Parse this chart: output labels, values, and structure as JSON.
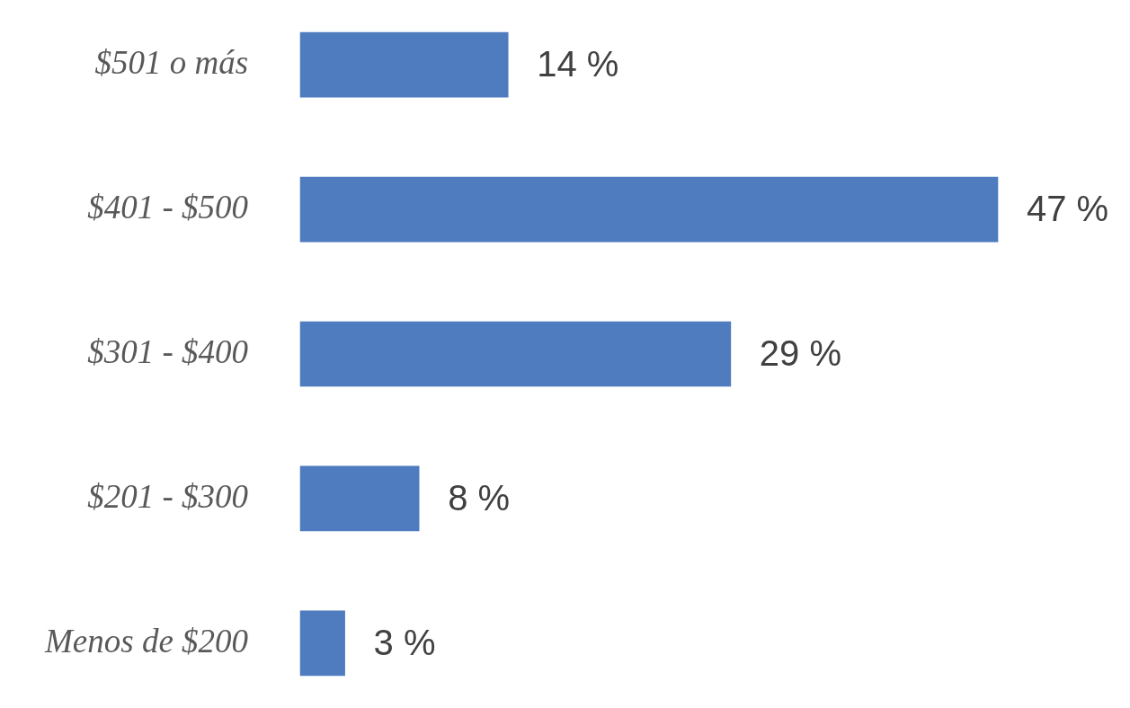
{
  "chart_data": {
    "type": "bar",
    "orientation": "horizontal",
    "categories": [
      "$501 o más",
      "$401 - $500",
      "$301 - $400",
      "$201 - $300",
      "Menos de $200"
    ],
    "values": [
      14,
      47,
      29,
      8,
      3
    ],
    "value_labels": [
      "14 %",
      "47 %",
      "29 %",
      "8 %",
      "3 %"
    ],
    "color": "#4f7bbf",
    "tick_labels": "y",
    "legend": false
  }
}
